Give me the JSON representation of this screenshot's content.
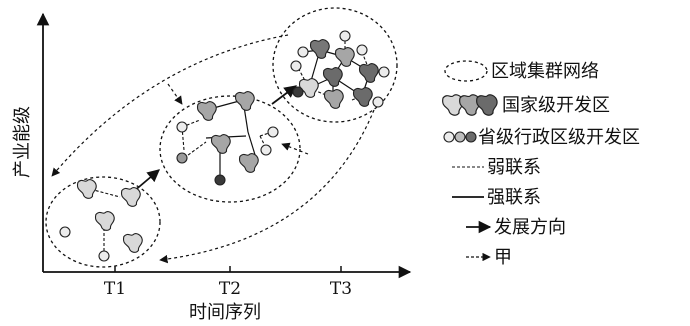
{
  "axes": {
    "y_title": "产业能级",
    "x_title": "时间序列",
    "x_ticks": [
      "T1",
      "T2",
      "T3"
    ]
  },
  "legend": {
    "cluster_network": "区域集群网络",
    "national_zone": "国家级开发区",
    "provincial_zone": "省级行政区级开发区",
    "weak_link": "弱联系",
    "strong_link": "强联系",
    "development_direction": "发展方向",
    "jia": "甲"
  },
  "colors": {
    "node_light": "#d9d9d9",
    "node_mid": "#a6a6a6",
    "node_dark": "#6b6b6b",
    "line": "#111111"
  }
}
